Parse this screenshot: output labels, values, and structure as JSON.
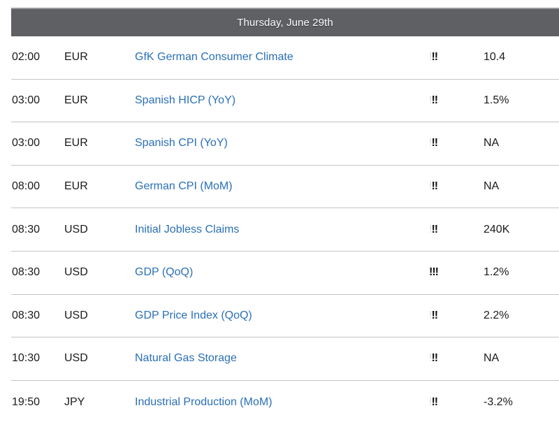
{
  "header": {
    "title": "Thursday, June 29th"
  },
  "events": [
    {
      "time": "02:00",
      "currency": "EUR",
      "event": "GfK German Consumer Climate",
      "importance_faded": "!",
      "importance_strong": "!!",
      "value": "10.4"
    },
    {
      "time": "03:00",
      "currency": "EUR",
      "event": "Spanish HICP (YoY)",
      "importance_faded": "!",
      "importance_strong": "!!",
      "value": "1.5%"
    },
    {
      "time": "03:00",
      "currency": "EUR",
      "event": "Spanish CPI (YoY)",
      "importance_faded": "!",
      "importance_strong": "!!",
      "value": "NA"
    },
    {
      "time": "08:00",
      "currency": "EUR",
      "event": "German CPI (MoM)",
      "importance_faded": "!",
      "importance_strong": "!!",
      "value": "NA"
    },
    {
      "time": "08:30",
      "currency": "USD",
      "event": "Initial Jobless Claims",
      "importance_faded": "!",
      "importance_strong": "!!",
      "value": "240K"
    },
    {
      "time": "08:30",
      "currency": "USD",
      "event": "GDP (QoQ)",
      "importance_faded": "",
      "importance_strong": "!!!",
      "value": "1.2%"
    },
    {
      "time": "08:30",
      "currency": "USD",
      "event": "GDP Price Index (QoQ)",
      "importance_faded": "!",
      "importance_strong": "!!",
      "value": "2.2%"
    },
    {
      "time": "10:30",
      "currency": "USD",
      "event": "Natural Gas Storage",
      "importance_faded": "!",
      "importance_strong": "!!",
      "value": "NA"
    },
    {
      "time": "19:50",
      "currency": "JPY",
      "event": "Industrial Production (MoM)",
      "importance_faded": "!",
      "importance_strong": "!!",
      "value": "-3.2%"
    }
  ]
}
